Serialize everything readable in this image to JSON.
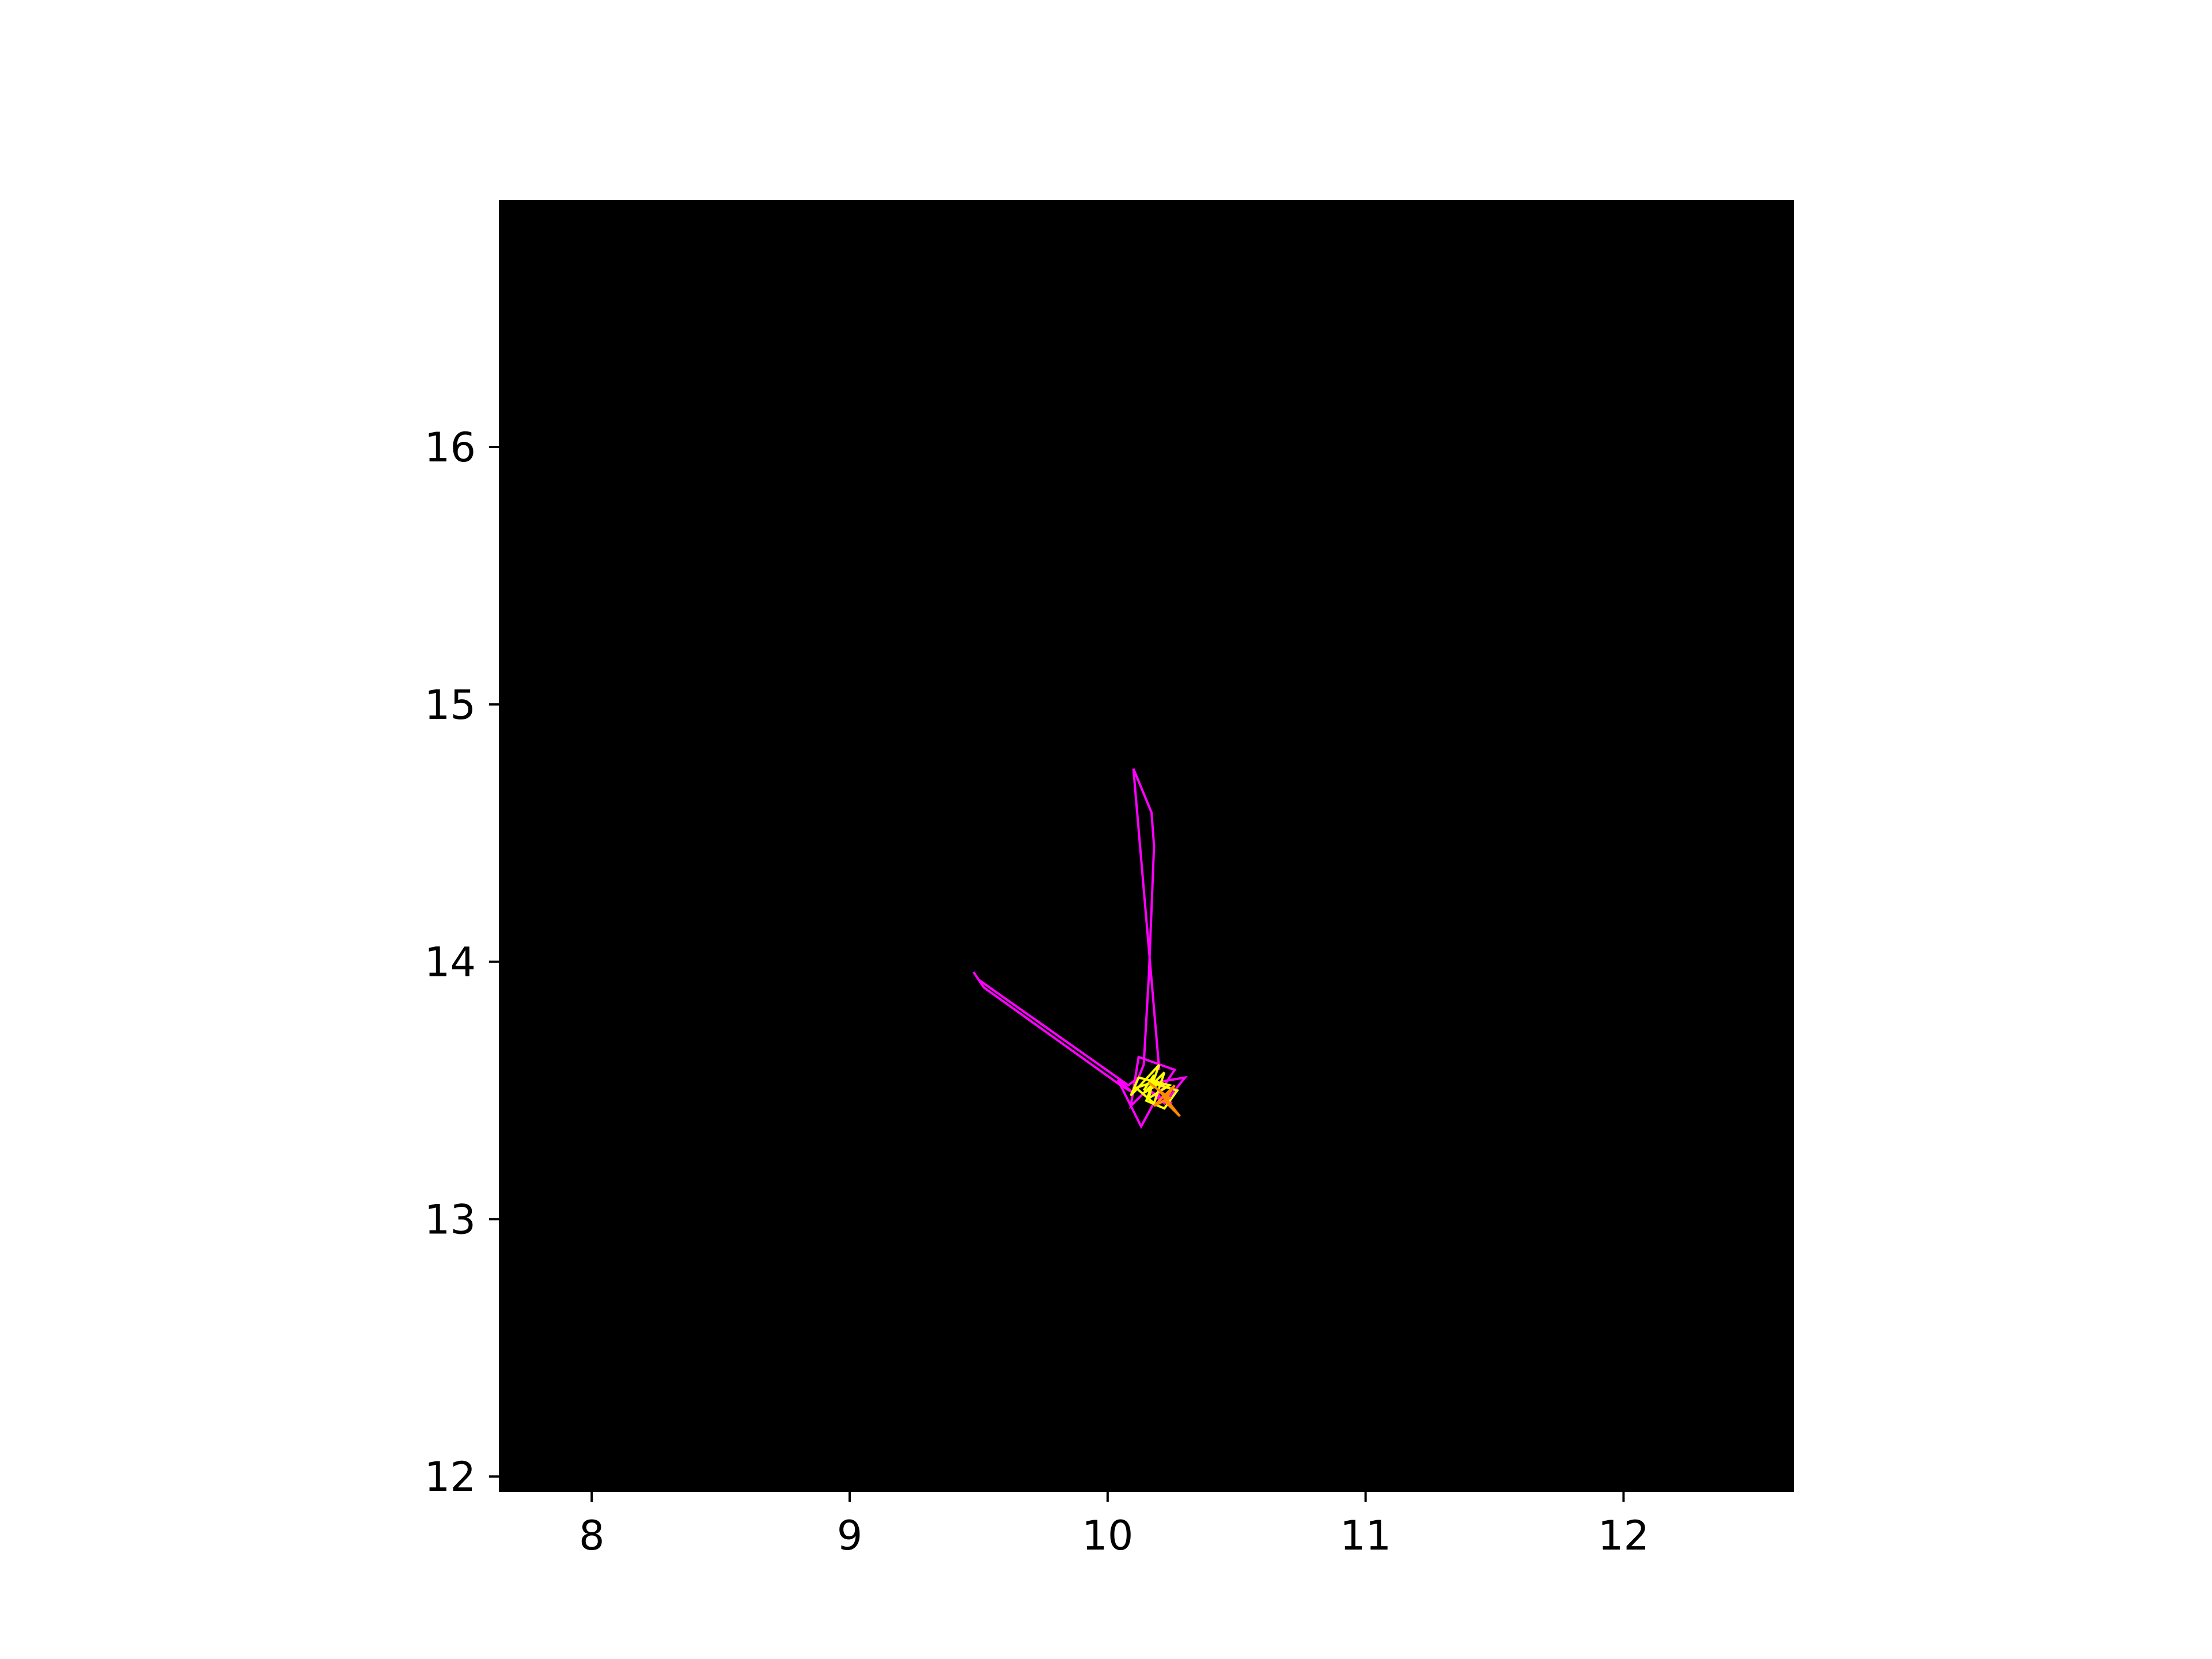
{
  "chart_data": {
    "type": "line",
    "title": "",
    "xlabel": "",
    "ylabel": "",
    "xlim": [
      7.64,
      12.66
    ],
    "ylim": [
      11.94,
      16.96
    ],
    "x_ticks": [
      8,
      9,
      10,
      11,
      12
    ],
    "y_ticks": [
      12,
      13,
      14,
      15,
      16
    ],
    "plot_background": "#000000",
    "grid": false,
    "legend": "none",
    "series": [
      {
        "color": "#ff00ff",
        "x": [
          10.2,
          10.1,
          10.17,
          10.18,
          10.16,
          10.14,
          10.12,
          10.08,
          9.5,
          9.48,
          9.52,
          10.05,
          10.1,
          10.04,
          10.13,
          10.2,
          10.26,
          10.12,
          10.09,
          10.18,
          10.3,
          10.22,
          10.16,
          10.25
        ],
        "y": [
          13.58,
          14.75,
          14.58,
          14.45,
          13.95,
          13.6,
          13.55,
          13.52,
          13.93,
          13.96,
          13.9,
          13.52,
          13.49,
          13.54,
          13.36,
          13.49,
          13.58,
          13.63,
          13.44,
          13.53,
          13.55,
          13.45,
          13.5,
          13.45
        ]
      },
      {
        "color": "#ffff00",
        "x": [
          10.14,
          10.18,
          10.16,
          10.24,
          10.12,
          10.09,
          10.2,
          10.15,
          10.22,
          10.27,
          10.17,
          10.11,
          10.18,
          10.22,
          10.14,
          10.19
        ],
        "y": [
          13.5,
          13.56,
          13.47,
          13.52,
          13.55,
          13.48,
          13.6,
          13.46,
          13.43,
          13.5,
          13.53,
          13.51,
          13.45,
          13.57,
          13.49,
          13.52
        ]
      },
      {
        "color": "#ff8c00",
        "x": [
          10.2,
          10.28,
          10.22,
          10.26,
          10.18,
          10.24,
          10.16
        ],
        "y": [
          13.5,
          13.4,
          13.46,
          13.52,
          13.44,
          13.47,
          13.53
        ]
      }
    ]
  }
}
